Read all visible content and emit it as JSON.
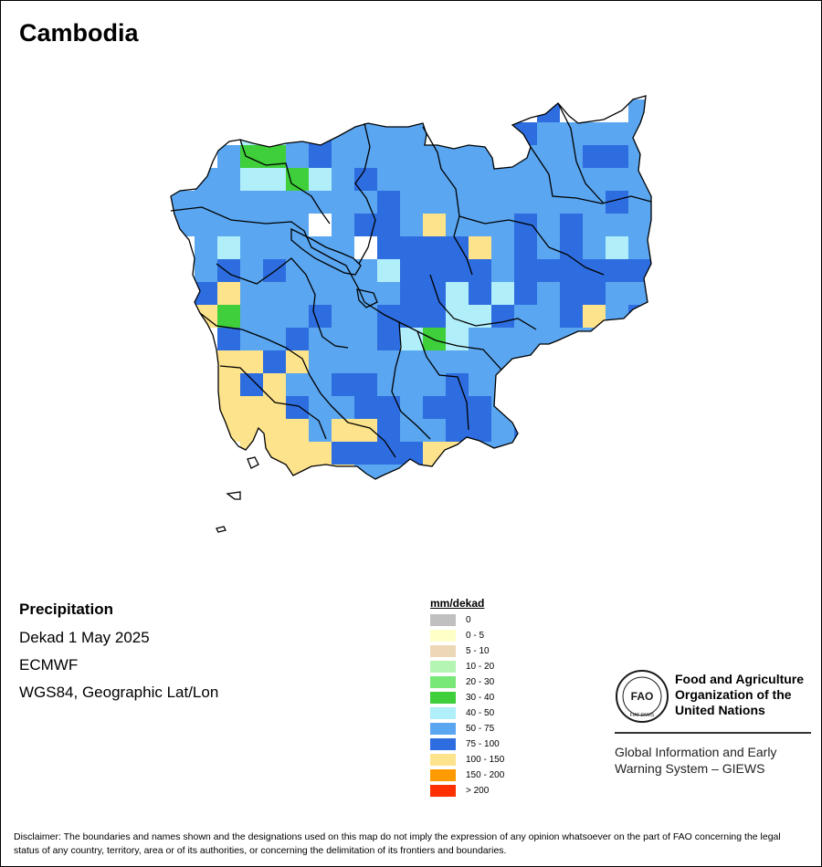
{
  "map": {
    "title": "Cambodia",
    "colors": {
      "c45": "#b0eefa",
      "c60": "#5aa6f0",
      "c85": "#2e6ddf",
      "c125": "#fde38c",
      "c35": "#3ecf3a",
      "c0": "#ffffff"
    }
  },
  "info": {
    "variable": "Precipitation",
    "period": "Dekad 1 May 2025",
    "source": "ECMWF",
    "projection": "WGS84, Geographic Lat/Lon"
  },
  "legend": {
    "title": "mm/dekad",
    "items": [
      {
        "label": "0",
        "color": "#c0c0c0"
      },
      {
        "label": "0 - 5",
        "color": "#ffffc8"
      },
      {
        "label": "5 - 10",
        "color": "#ecd8b6"
      },
      {
        "label": "10 - 20",
        "color": "#b4f5b4"
      },
      {
        "label": "20 - 30",
        "color": "#78e878"
      },
      {
        "label": "30 - 40",
        "color": "#3ecf3a"
      },
      {
        "label": "40 - 50",
        "color": "#b0eefa"
      },
      {
        "label": "50 - 75",
        "color": "#5aa6f0"
      },
      {
        "label": "75 - 100",
        "color": "#2e6ddf"
      },
      {
        "label": "100 - 150",
        "color": "#fde38c"
      },
      {
        "label": "150 - 200",
        "color": "#ff9a00"
      },
      {
        "label": "> 200",
        "color": "#ff3000"
      }
    ]
  },
  "org": {
    "logo_text": "FAO",
    "logo_motto": "FIAT PANIS",
    "name_line1": "Food and Agriculture",
    "name_line2": "Organization of the",
    "name_line3": "United Nations",
    "system_line1": "Global Information and Early",
    "system_line2": "Warning System – GIEWS"
  },
  "disclaimer": "Disclaimer: The boundaries and names shown and the designations used on this map do not imply the expression of any opinion whatsoever on the part of FAO concerning the legal status of any country, territory, area or of its authorities, or concerning the delimitation of its frontiers and boundaries."
}
